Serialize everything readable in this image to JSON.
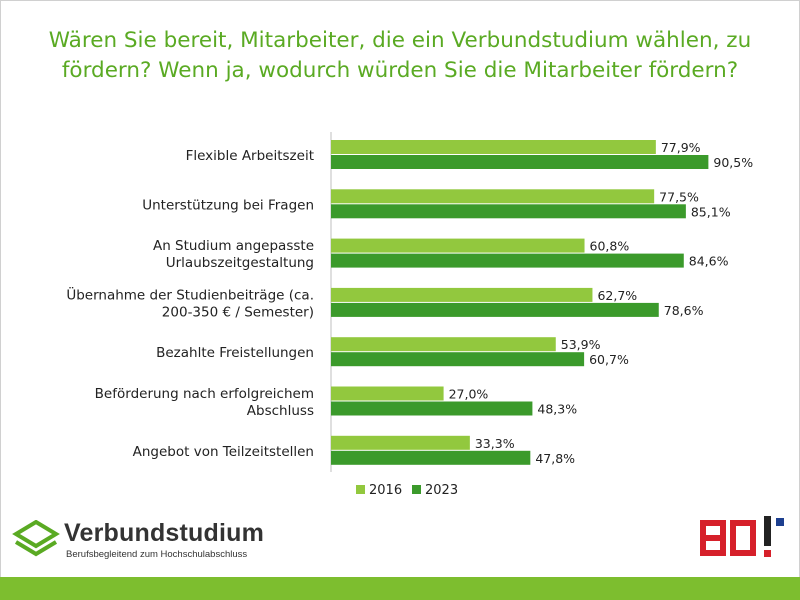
{
  "title": "Wären Sie bereit, Mitarbeiter, die ein Verbundstudium wählen, zu fördern? Wenn ja, wodurch würden Sie die Mitarbeiter fördern?",
  "colors": {
    "accent": "#5aaa23",
    "series_2016": "#92c83e",
    "series_2023": "#3b9a2b",
    "band": "#7dbe2f",
    "bo_red": "#d6202a",
    "bo_blue": "#1d3f8f"
  },
  "logo": {
    "name": "Verbundstudium",
    "tagline": "Berufsbegleitend zum Hochschulabschluss",
    "mark_icon": "diamond-stack-icon",
    "partner_icon": "bo-logo-icon"
  },
  "chart_data": {
    "type": "bar",
    "orientation": "horizontal",
    "categories": [
      [
        "Flexible Arbeitszeit"
      ],
      [
        "Unterstützung bei Fragen"
      ],
      [
        "An Studium angepasste",
        "Urlaubszeitgestaltung"
      ],
      [
        "Übernahme der Studienbeiträge (ca.",
        "200-350 € / Semester)"
      ],
      [
        "Bezahlte Freistellungen"
      ],
      [
        "Beförderung nach erfolgreichem",
        "Abschluss"
      ],
      [
        "Angebot von Teilzeitstellen"
      ]
    ],
    "series": [
      {
        "name": "2016",
        "values": [
          77.9,
          77.5,
          60.8,
          62.7,
          53.9,
          27.0,
          33.3
        ],
        "labels": [
          "77,9%",
          "77,5%",
          "60,8%",
          "62,7%",
          "53,9%",
          "27,0%",
          "33,3%"
        ]
      },
      {
        "name": "2023",
        "values": [
          90.5,
          85.1,
          84.6,
          78.6,
          60.7,
          48.3,
          47.8
        ],
        "labels": [
          "90,5%",
          "85,1%",
          "84,6%",
          "78,6%",
          "60,7%",
          "48,3%",
          "47,8%"
        ]
      }
    ],
    "xlim": [
      0,
      100
    ],
    "grid": false,
    "legend_position": "bottom"
  }
}
